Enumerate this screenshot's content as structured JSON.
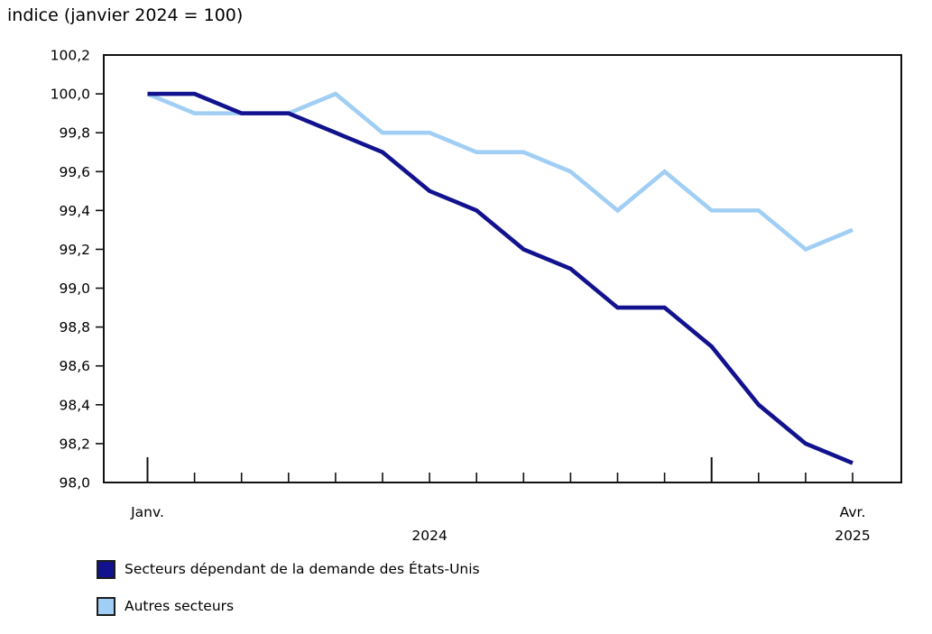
{
  "title": "indice (janvier 2024 = 100)",
  "chart_data": {
    "type": "line",
    "title": "indice (janvier 2024 = 100)",
    "n_points": 16,
    "x_period": "monthly, Janv. 2024 to Avr. 2025",
    "x_tick_labels": [
      {
        "index": 0,
        "label": "Janv."
      },
      {
        "index": 15,
        "label": "Avr."
      }
    ],
    "x_year_labels": [
      {
        "text": "2024",
        "center_between": [
          0,
          12
        ]
      },
      {
        "text": "2025",
        "center_between": [
          15,
          15
        ]
      }
    ],
    "major_tick_indices": [
      0,
      12
    ],
    "ylim": [
      98.0,
      100.2
    ],
    "y_tick_step": 0.2,
    "grid": false,
    "legend_position": "bottom-left",
    "y_ticks": [
      {
        "value": 100.2,
        "label": "100,2"
      },
      {
        "value": 100.0,
        "label": "100,0"
      },
      {
        "value": 99.8,
        "label": "99,8"
      },
      {
        "value": 99.6,
        "label": "99,6"
      },
      {
        "value": 99.4,
        "label": "99,4"
      },
      {
        "value": 99.2,
        "label": "99,2"
      },
      {
        "value": 99.0,
        "label": "99,0"
      },
      {
        "value": 98.8,
        "label": "98,8"
      },
      {
        "value": 98.6,
        "label": "98,6"
      },
      {
        "value": 98.4,
        "label": "98,4"
      },
      {
        "value": 98.2,
        "label": "98,2"
      },
      {
        "value": 98.0,
        "label": "98,0"
      }
    ],
    "series": [
      {
        "name": "Secteurs dépendant de la demande des États-Unis",
        "color": "#12128F",
        "values": [
          100.0,
          100.0,
          99.9,
          99.9,
          99.8,
          99.7,
          99.5,
          99.4,
          99.2,
          99.1,
          98.9,
          98.9,
          98.7,
          98.4,
          98.2,
          98.1
        ]
      },
      {
        "name": "Autres secteurs",
        "color": "#A1CEF4",
        "values": [
          100.0,
          99.9,
          99.9,
          99.9,
          100.0,
          99.8,
          99.8,
          99.7,
          99.7,
          99.6,
          99.4,
          99.6,
          99.4,
          99.4,
          99.2,
          99.3
        ]
      }
    ]
  },
  "legend": [
    {
      "label": "Secteurs dépendant de la demande des États-Unis",
      "color": "#12128F"
    },
    {
      "label": "Autres secteurs",
      "color": "#A1CEF4"
    }
  ]
}
